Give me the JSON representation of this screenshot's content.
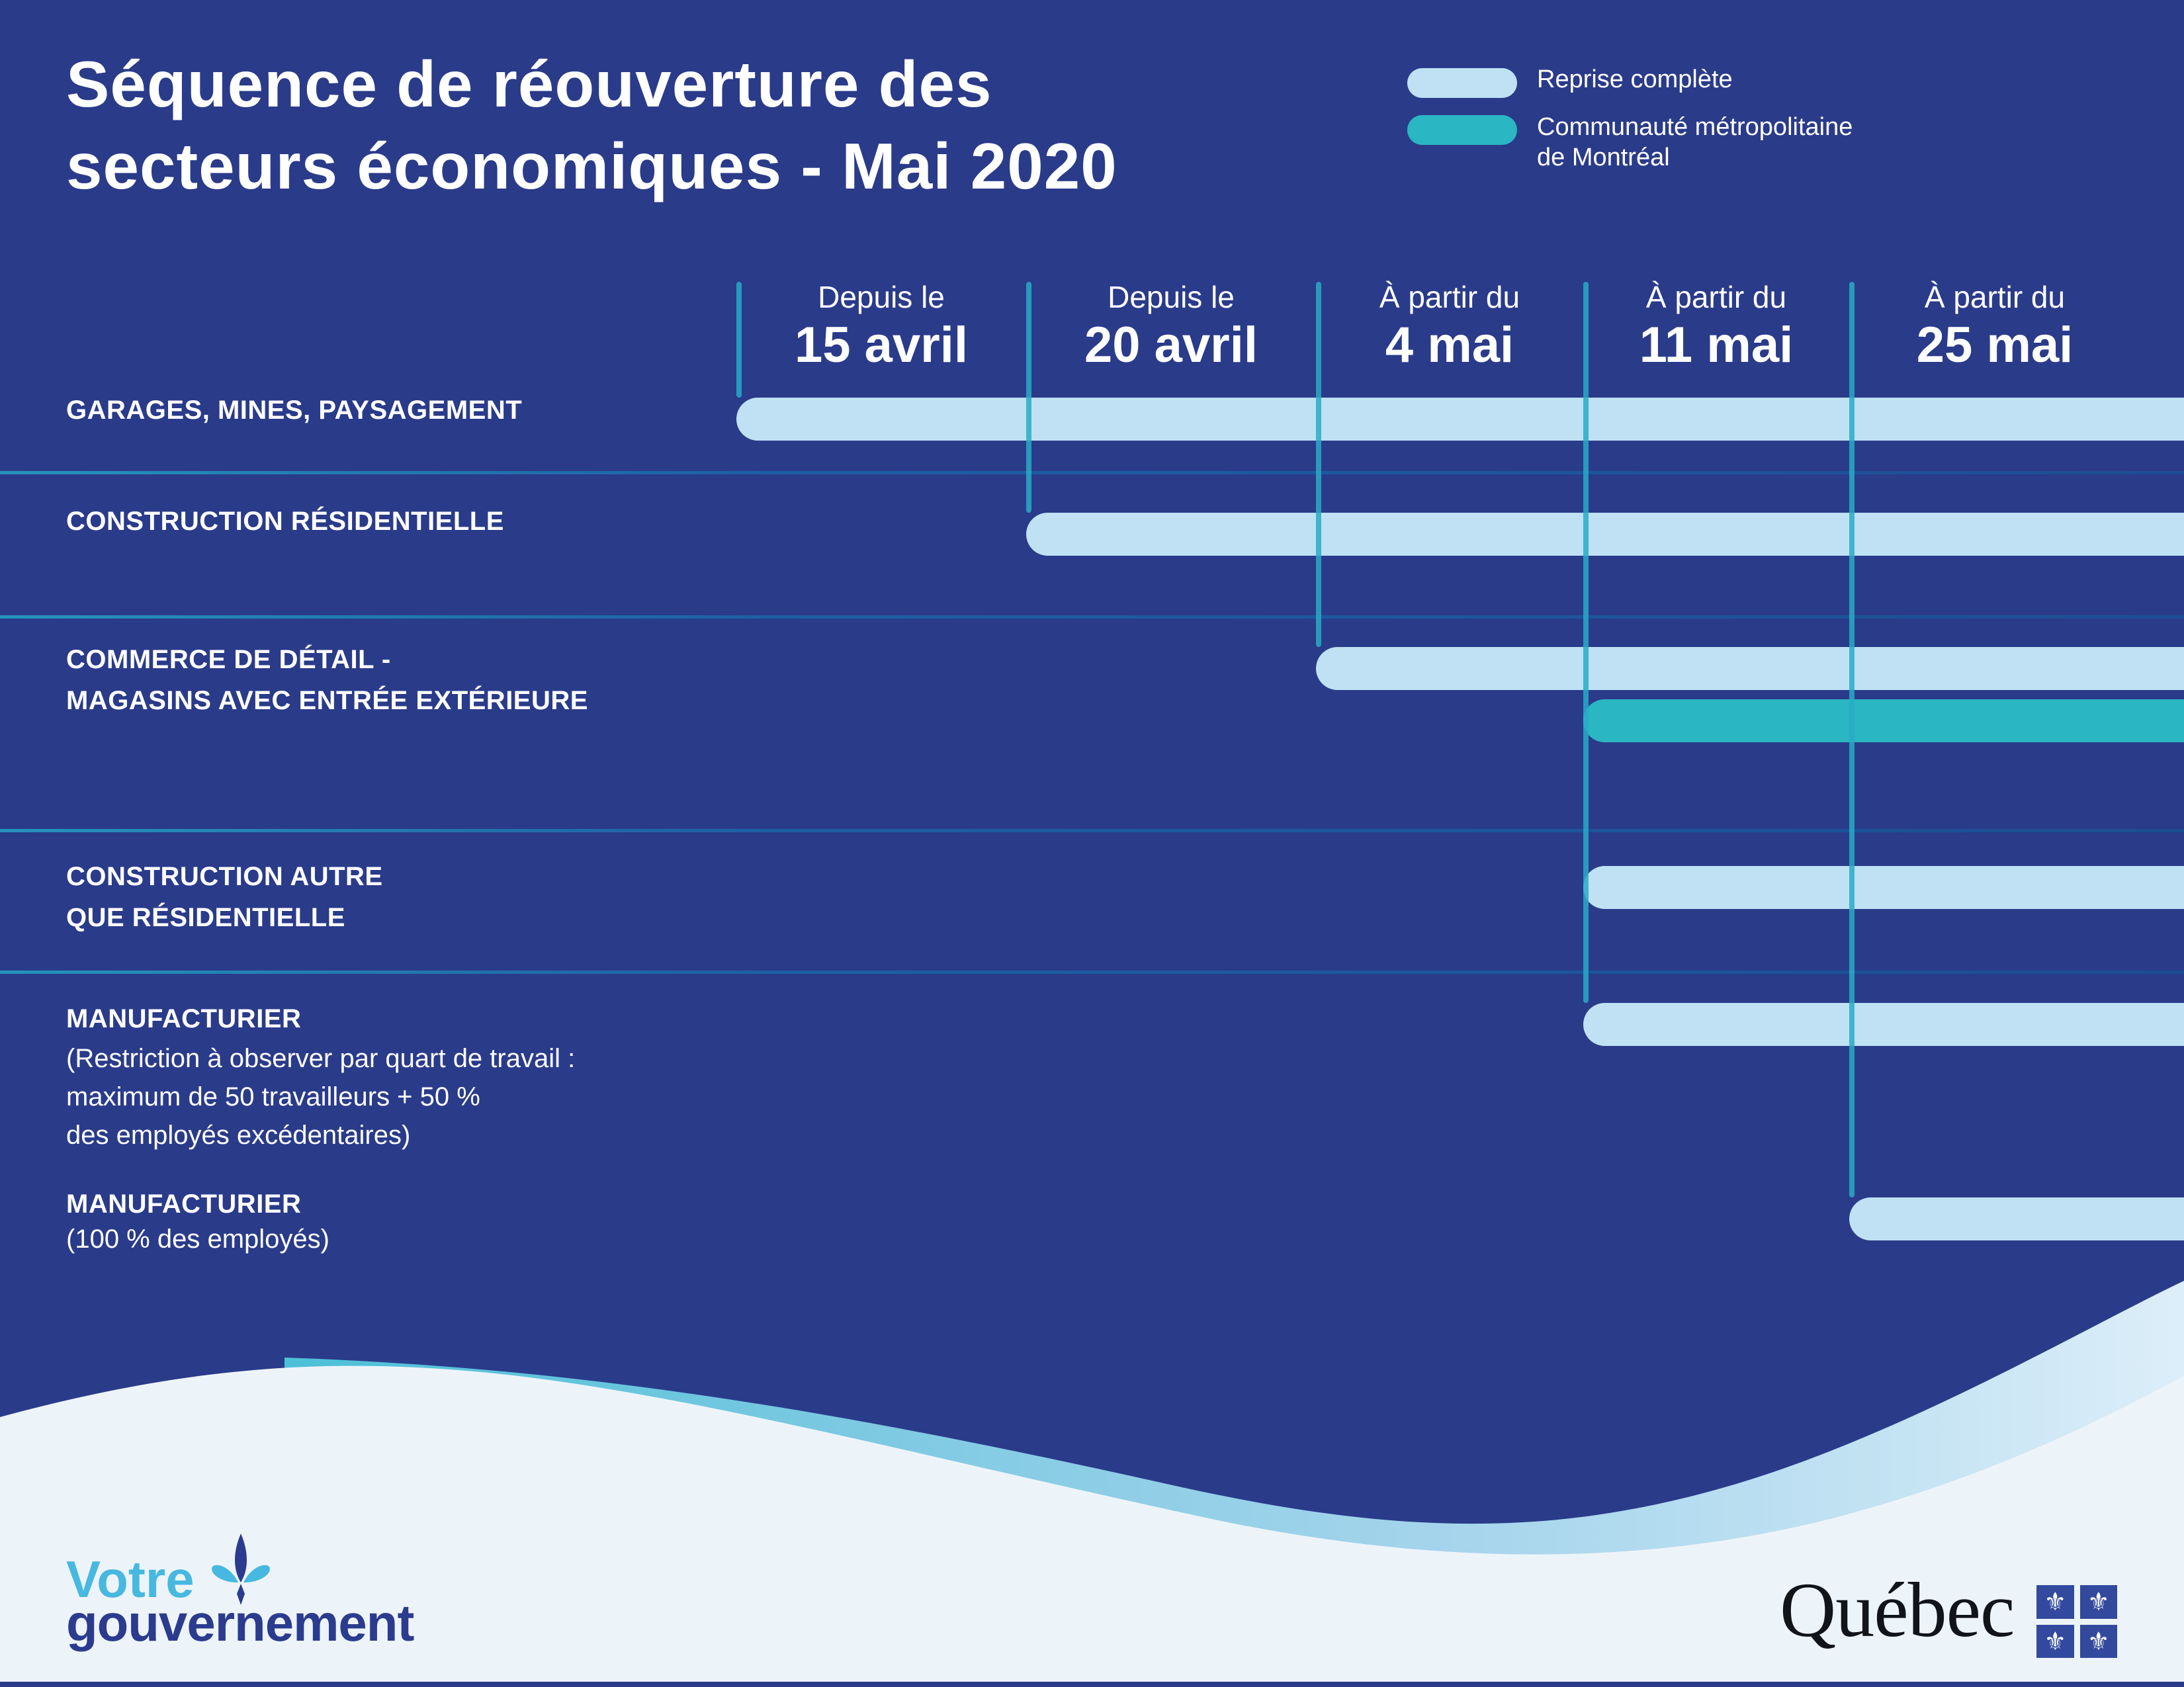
{
  "page": {
    "title_line1": "Séquence de réouverture des",
    "title_line2": "secteurs économiques - Mai 2020"
  },
  "legend": {
    "items": [
      {
        "id": "reprise-complete",
        "label_lines": [
          "Reprise complète"
        ],
        "color": "#BFE1F3"
      },
      {
        "id": "cmm",
        "label_lines": [
          "Communauté métropolitaine",
          "de Montréal"
        ],
        "color": "#2BB6C3"
      }
    ]
  },
  "timeline": {
    "columns": [
      {
        "prefix": "Depuis le",
        "date": "15 avril"
      },
      {
        "prefix": "Depuis le",
        "date": "20 avril"
      },
      {
        "prefix": "À partir du",
        "date": "4 mai"
      },
      {
        "prefix": "À partir du",
        "date": "11 mai"
      },
      {
        "prefix": "À partir du",
        "date": "25 mai"
      }
    ]
  },
  "rows": [
    {
      "title_lines": [
        "GARAGES, MINES, PAYSAGEMENT"
      ],
      "sub_lines": [],
      "bars": [
        {
          "series": "reprise-complete",
          "start_column": 0
        }
      ]
    },
    {
      "title_lines": [
        "CONSTRUCTION RÉSIDENTIELLE"
      ],
      "sub_lines": [],
      "bars": [
        {
          "series": "reprise-complete",
          "start_column": 1
        }
      ]
    },
    {
      "title_lines": [
        "COMMERCE DE DÉTAIL -",
        "MAGASINS AVEC ENTRÉE EXTÉRIEURE"
      ],
      "sub_lines": [],
      "bars": [
        {
          "series": "reprise-complete",
          "start_column": 2
        },
        {
          "series": "cmm",
          "start_column": 3
        }
      ]
    },
    {
      "title_lines": [
        "CONSTRUCTION AUTRE",
        "QUE RÉSIDENTIELLE"
      ],
      "sub_lines": [],
      "bars": [
        {
          "series": "reprise-complete",
          "start_column": 3
        }
      ]
    },
    {
      "title_lines": [
        "MANUFACTURIER"
      ],
      "sub_lines": [
        "(Restriction à observer par quart de travail :",
        "maximum de 50 travailleurs + 50 %",
        "des employés excédentaires)"
      ],
      "bars": [
        {
          "series": "reprise-complete",
          "start_column": 3
        }
      ]
    },
    {
      "title_lines": [
        "MANUFACTURIER"
      ],
      "sub_lines": [
        "(100 % des employés)"
      ],
      "bars": [
        {
          "series": "reprise-complete",
          "start_column": 4
        }
      ]
    }
  ],
  "footer": {
    "votre": "Votre",
    "gouvernement": "gouvernement",
    "quebec_wordmark": "Québec"
  },
  "icons": {
    "flag_fleur_de_lis": "⚜"
  },
  "colors": {
    "background": "#2A3B8A",
    "bar_light": "#BFE1F3",
    "bar_teal": "#2BB6C3",
    "column_line": "#28ACC5",
    "divider": "#1D5FA3",
    "wave_white": "#EDF4F9",
    "votre_blue": "#47B8E0",
    "gouvernement_navy": "#2B3B8E",
    "flag_blue": "#32499E"
  },
  "chart_data": {
    "type": "bar",
    "variant": "gantt-timeline",
    "title": "Séquence de réouverture des secteurs économiques - Mai 2020",
    "x_milestones": [
      {
        "prefix": "Depuis le",
        "date": "15 avril"
      },
      {
        "prefix": "Depuis le",
        "date": "20 avril"
      },
      {
        "prefix": "À partir du",
        "date": "4 mai"
      },
      {
        "prefix": "À partir du",
        "date": "11 mai"
      },
      {
        "prefix": "À partir du",
        "date": "25 mai"
      }
    ],
    "series": [
      {
        "name": "Reprise complète",
        "color": "#BFE1F3"
      },
      {
        "name": "Communauté métropolitaine de Montréal",
        "color": "#2BB6C3"
      }
    ],
    "rows": [
      {
        "sector": "GARAGES, MINES, PAYSAGEMENT",
        "bars": [
          {
            "series": "Reprise complète",
            "start": "15 avril",
            "end": "ongoing"
          }
        ]
      },
      {
        "sector": "CONSTRUCTION RÉSIDENTIELLE",
        "bars": [
          {
            "series": "Reprise complète",
            "start": "20 avril",
            "end": "ongoing"
          }
        ]
      },
      {
        "sector": "COMMERCE DE DÉTAIL - MAGASINS AVEC ENTRÉE EXTÉRIEURE",
        "bars": [
          {
            "series": "Reprise complète",
            "start": "4 mai",
            "end": "ongoing"
          },
          {
            "series": "Communauté métropolitaine de Montréal",
            "start": "11 mai",
            "end": "ongoing"
          }
        ]
      },
      {
        "sector": "CONSTRUCTION AUTRE QUE RÉSIDENTIELLE",
        "bars": [
          {
            "series": "Reprise complète",
            "start": "11 mai",
            "end": "ongoing"
          }
        ]
      },
      {
        "sector": "MANUFACTURIER (Restriction à observer par quart de travail : maximum de 50 travailleurs + 50 % des employés excédentaires)",
        "bars": [
          {
            "series": "Reprise complète",
            "start": "11 mai",
            "end": "ongoing"
          }
        ]
      },
      {
        "sector": "MANUFACTURIER (100 % des employés)",
        "bars": [
          {
            "series": "Reprise complète",
            "start": "25 mai",
            "end": "ongoing"
          }
        ]
      }
    ],
    "legend_position": "top-right",
    "grid": "vertical-milestone-lines"
  }
}
